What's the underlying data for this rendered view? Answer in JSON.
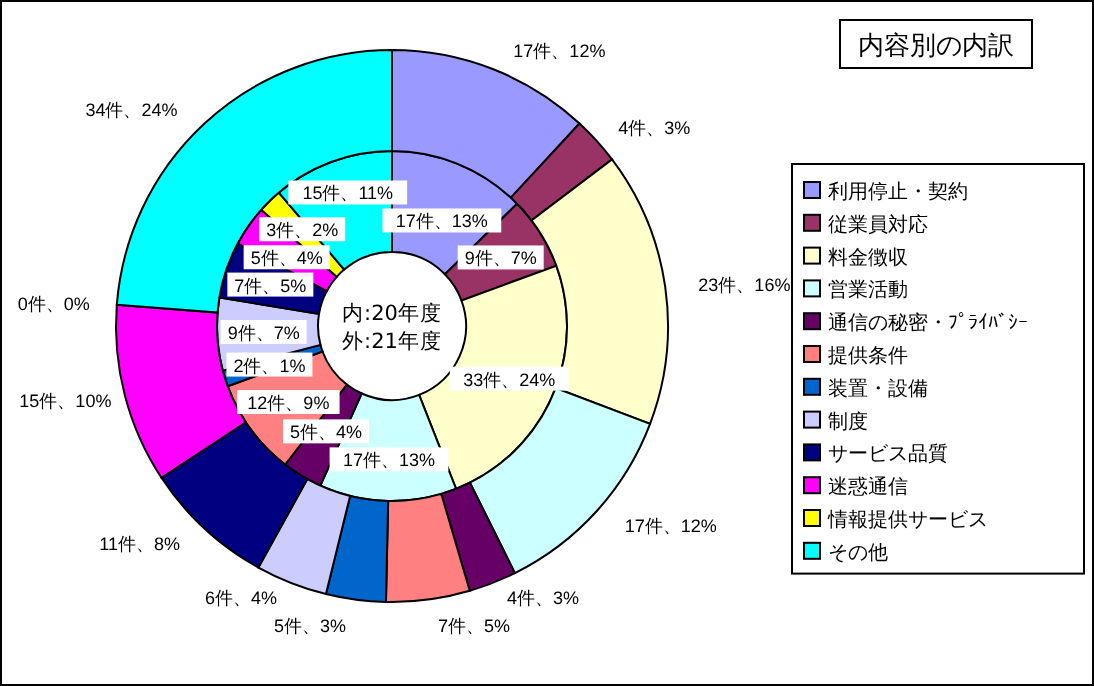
{
  "chart_data": {
    "type": "donut",
    "title": "内容別の内訳",
    "annotations": [
      "内:20年度",
      "外:21年度"
    ],
    "legend": "right",
    "categories": [
      "利用停止・契約",
      "従業員対応",
      "料金徴収",
      "営業活動",
      "通信の秘密・ﾌﾟﾗｲﾊﾞｼｰ",
      "提供条件",
      "装置・設備",
      "制度",
      "サービス品質",
      "迷惑通信",
      "情報提供サービス",
      "その他"
    ],
    "colors": [
      "#9999ff",
      "#993366",
      "#ffffcc",
      "#ccffff",
      "#660066",
      "#ff8080",
      "#0066cc",
      "#ccccff",
      "#000080",
      "#ff00ff",
      "#ffff00",
      "#00ffff"
    ],
    "series": [
      {
        "values": [
          17,
          9,
          33,
          17,
          5,
          12,
          2,
          9,
          7,
          5,
          3,
          15
        ],
        "value_labels": [
          "17件、13%",
          "9件、7%",
          "33件、24%",
          "17件、13%",
          "5件、4%",
          "12件、9%",
          "2件、1%",
          "9件、7%",
          "7件、5%",
          "5件、4%",
          "3件、2%",
          "15件、11%"
        ]
      },
      {
        "values": [
          17,
          4,
          23,
          17,
          4,
          7,
          5,
          6,
          11,
          15,
          0,
          34
        ],
        "value_labels": [
          "17件、12%",
          "4件、3%",
          "23件、16%",
          "17件、12%",
          "4件、3%",
          "7件、5%",
          "5件、3%",
          "6件、4%",
          "11件、8%",
          "15件、10%",
          "0件、0%",
          "34件、24%"
        ]
      }
    ]
  }
}
